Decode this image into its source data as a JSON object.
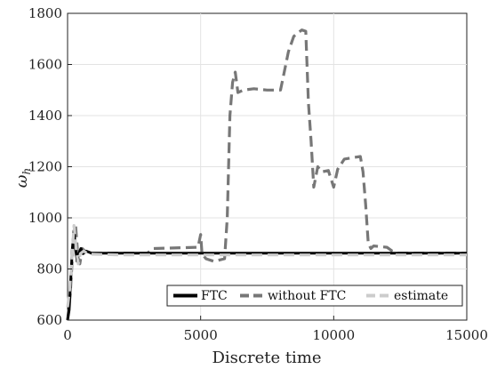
{
  "chart_data": {
    "type": "line",
    "xlabel": "Discrete time",
    "ylabel": "ω",
    "ylabel_sub": "h",
    "xlim": [
      0,
      15000
    ],
    "ylim": [
      600,
      1800
    ],
    "xticks": [
      0,
      5000,
      10000,
      15000
    ],
    "xtick_labels": [
      "0",
      "5000",
      "10000",
      "15000"
    ],
    "yticks": [
      600,
      800,
      1000,
      1200,
      1400,
      1600,
      1800
    ],
    "ytick_labels": [
      "600",
      "800",
      "1000",
      "1200",
      "1400",
      "1600",
      "1800"
    ],
    "grid": true,
    "legend_position": "bottom-right",
    "series": [
      {
        "name": "FTC",
        "color": "#000000",
        "style": "solid",
        "points": [
          [
            0,
            600
          ],
          [
            60,
            640
          ],
          [
            120,
            760
          ],
          [
            180,
            880
          ],
          [
            240,
            950
          ],
          [
            300,
            880
          ],
          [
            360,
            830
          ],
          [
            420,
            860
          ],
          [
            500,
            880
          ],
          [
            580,
            860
          ],
          [
            700,
            870
          ],
          [
            900,
            862
          ],
          [
            2000,
            862
          ],
          [
            5000,
            862
          ],
          [
            10000,
            862
          ],
          [
            15000,
            862
          ]
        ]
      },
      {
        "name": "without FTC",
        "color": "#777777",
        "style": "dashed",
        "points": [
          [
            0,
            600
          ],
          [
            100,
            700
          ],
          [
            200,
            880
          ],
          [
            300,
            970
          ],
          [
            380,
            860
          ],
          [
            460,
            820
          ],
          [
            550,
            880
          ],
          [
            650,
            870
          ],
          [
            800,
            862
          ],
          [
            3000,
            862
          ],
          [
            3200,
            880
          ],
          [
            4900,
            885
          ],
          [
            5000,
            935
          ],
          [
            5050,
            860
          ],
          [
            5200,
            840
          ],
          [
            5500,
            830
          ],
          [
            5900,
            840
          ],
          [
            6000,
            1000
          ],
          [
            6100,
            1400
          ],
          [
            6200,
            1530
          ],
          [
            6300,
            1570
          ],
          [
            6400,
            1490
          ],
          [
            6600,
            1500
          ],
          [
            7000,
            1505
          ],
          [
            7500,
            1500
          ],
          [
            8000,
            1500
          ],
          [
            8100,
            1550
          ],
          [
            8300,
            1650
          ],
          [
            8500,
            1710
          ],
          [
            8800,
            1735
          ],
          [
            8950,
            1730
          ],
          [
            9050,
            1450
          ],
          [
            9150,
            1300
          ],
          [
            9250,
            1120
          ],
          [
            9400,
            1200
          ],
          [
            9550,
            1180
          ],
          [
            9800,
            1185
          ],
          [
            10000,
            1120
          ],
          [
            10150,
            1190
          ],
          [
            10400,
            1230
          ],
          [
            10700,
            1235
          ],
          [
            11000,
            1240
          ],
          [
            11100,
            1180
          ],
          [
            11200,
            1050
          ],
          [
            11300,
            900
          ],
          [
            11400,
            880
          ],
          [
            11500,
            890
          ],
          [
            12000,
            885
          ],
          [
            12200,
            870
          ],
          [
            12400,
            862
          ],
          [
            15000,
            862
          ]
        ]
      },
      {
        "name": "estimate",
        "color": "#cccccc",
        "style": "dashed",
        "points": [
          [
            0,
            650
          ],
          [
            80,
            720
          ],
          [
            160,
            830
          ],
          [
            240,
            970
          ],
          [
            320,
            880
          ],
          [
            400,
            820
          ],
          [
            480,
            860
          ],
          [
            600,
            870
          ],
          [
            800,
            858
          ],
          [
            2000,
            855
          ],
          [
            5000,
            855
          ],
          [
            10000,
            855
          ],
          [
            15000,
            855
          ]
        ]
      }
    ]
  }
}
